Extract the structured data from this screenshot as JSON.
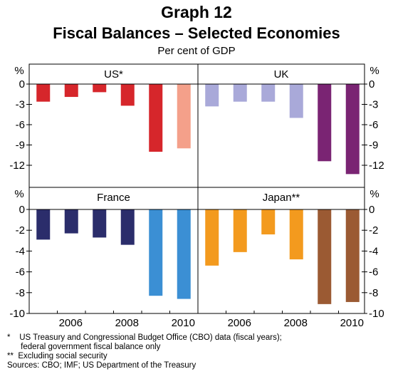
{
  "header": {
    "graph_label": "Graph 12",
    "title": "Fiscal Balances – Selected Economies",
    "subtitle": "Per cent of GDP"
  },
  "footnotes": [
    "*    US Treasury and Congressional Budget Office (CBO) data (fiscal years);",
    "      federal government fiscal balance only",
    "**  Excluding social security",
    "Sources: CBO; IMF; US Department of the Treasury"
  ],
  "chart_data": [
    {
      "type": "bar",
      "panel": "top-left",
      "title": "US*",
      "unit_label": "%",
      "x": [
        2005,
        2006,
        2007,
        2008,
        2009,
        2010
      ],
      "ylim": [
        -15,
        1
      ],
      "yticks": [
        0,
        -3,
        -6,
        -9,
        -12
      ],
      "values": [
        -2.6,
        -1.9,
        -1.2,
        -3.2,
        -10.0,
        -9.5
      ],
      "colors": [
        "#d6262b",
        "#d6262b",
        "#d6262b",
        "#d6262b",
        "#d6262b",
        "#f4a08a"
      ]
    },
    {
      "type": "bar",
      "panel": "top-right",
      "title": "UK",
      "unit_label": "%",
      "x": [
        2005,
        2006,
        2007,
        2008,
        2009,
        2010
      ],
      "ylim": [
        -15,
        1
      ],
      "yticks": [
        0,
        -3,
        -6,
        -9,
        -12
      ],
      "values": [
        -3.3,
        -2.6,
        -2.6,
        -5.0,
        -11.4,
        -13.3
      ],
      "colors": [
        "#a9a9d9",
        "#a9a9d9",
        "#a9a9d9",
        "#a9a9d9",
        "#7a2473",
        "#7a2473"
      ]
    },
    {
      "type": "bar",
      "panel": "bottom-left",
      "title": "France",
      "unit_label": "%",
      "x": [
        2005,
        2006,
        2007,
        2008,
        2009,
        2010
      ],
      "xtick_labels": [
        "2006",
        "2008",
        "2010"
      ],
      "ylim": [
        -10,
        1
      ],
      "yticks": [
        0,
        -2,
        -4,
        -6,
        -8,
        -10
      ],
      "values": [
        -2.9,
        -2.3,
        -2.7,
        -3.4,
        -8.3,
        -8.6
      ],
      "colors": [
        "#2b2d6b",
        "#2b2d6b",
        "#2b2d6b",
        "#2b2d6b",
        "#3b8fd4",
        "#3b8fd4"
      ]
    },
    {
      "type": "bar",
      "panel": "bottom-right",
      "title": "Japan**",
      "unit_label": "%",
      "x": [
        2005,
        2006,
        2007,
        2008,
        2009,
        2010
      ],
      "xtick_labels": [
        "2006",
        "2008",
        "2010"
      ],
      "ylim": [
        -10,
        1
      ],
      "yticks": [
        0,
        -2,
        -4,
        -6,
        -8,
        -10
      ],
      "values": [
        -5.4,
        -4.1,
        -2.4,
        -4.8,
        -9.1,
        -8.9
      ],
      "colors": [
        "#f39a1e",
        "#f39a1e",
        "#f39a1e",
        "#f39a1e",
        "#9b5a33",
        "#9b5a33"
      ]
    }
  ]
}
